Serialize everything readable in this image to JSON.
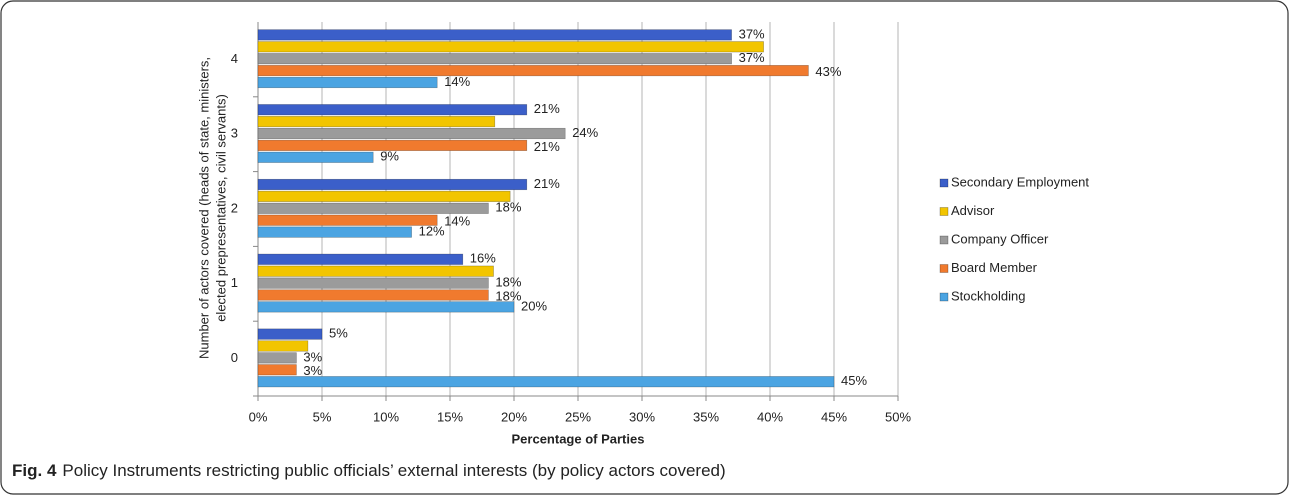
{
  "chart_data": {
    "type": "hbar",
    "caption_label": "Fig. 4",
    "caption": "Policy Instruments restricting public officials’ external interests (by policy actors covered)",
    "xlabel": "Percentage of Parties",
    "ylabel": [
      "Number of actors covered (heads of state, ministers,",
      "elected prepresentatives, civil servants)"
    ],
    "categories": [
      "0",
      "1",
      "2",
      "3",
      "4"
    ],
    "series": [
      {
        "name": "Secondary Employment",
        "color": "#3b5fc9",
        "values": [
          5,
          16,
          21,
          21,
          37
        ],
        "value_labels": [
          "5%",
          "16%",
          "21%",
          "21%",
          "37%"
        ]
      },
      {
        "name": "Advisor",
        "color": "#f2c500",
        "values": [
          3.9,
          18.4,
          19.7,
          18.5,
          39.5
        ]
      },
      {
        "name": "Company Officer",
        "color": "#9b9b9b",
        "values": [
          3,
          18,
          18,
          24,
          37
        ],
        "value_labels": [
          "3%",
          "18%",
          "18%",
          "24%",
          "37%"
        ]
      },
      {
        "name": "Board Member",
        "color": "#f07a2e",
        "values": [
          3,
          18,
          14,
          21,
          43
        ],
        "value_labels": [
          "3%",
          "18%",
          "14%",
          "21%",
          "43%"
        ]
      },
      {
        "name": "Stockholding",
        "color": "#4ba4e2",
        "values": [
          45,
          20,
          12,
          9,
          14
        ],
        "value_labels": [
          "45%",
          "20%",
          "12%",
          "9%",
          "14%"
        ]
      }
    ],
    "xlim": [
      0,
      50
    ],
    "xticks": [
      {
        "value": 0,
        "label": "0%"
      },
      {
        "value": 5,
        "label": "5%"
      },
      {
        "value": 10,
        "label": "10%"
      },
      {
        "value": 15,
        "label": "15%"
      },
      {
        "value": 20,
        "label": "20%"
      },
      {
        "value": 25,
        "label": "25%"
      },
      {
        "value": 30,
        "label": "30%"
      },
      {
        "value": 35,
        "label": "35%"
      },
      {
        "value": 40,
        "label": "40%"
      },
      {
        "value": 45,
        "label": "45%"
      },
      {
        "value": 50,
        "label": "50%"
      }
    ],
    "grid": true,
    "legend": "right"
  }
}
